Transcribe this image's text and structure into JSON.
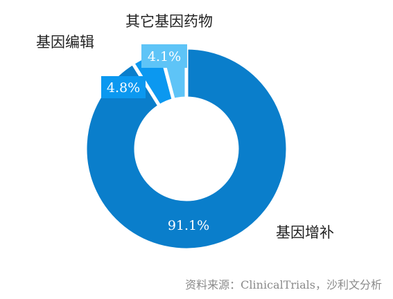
{
  "chart_data": {
    "type": "pie",
    "variant": "donut",
    "title": "",
    "categories": [
      "基因增补",
      "基因编辑",
      "其它基因药物"
    ],
    "values": [
      91.1,
      4.8,
      4.1
    ],
    "value_labels": [
      "91.1%",
      "4.8%",
      "4.1%"
    ],
    "colors": [
      "#0a7ecb",
      "#0b98f0",
      "#5ec4f7"
    ],
    "legend": "none"
  },
  "source": "资料来源：ClinicalTrials，沙利文分析"
}
